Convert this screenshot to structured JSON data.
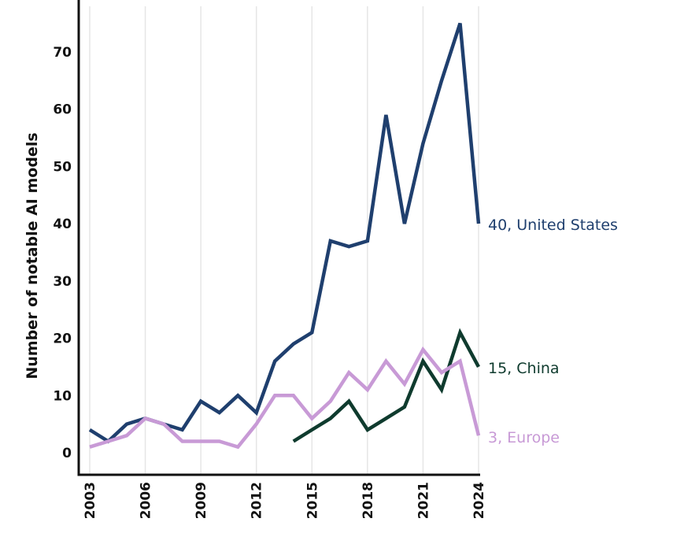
{
  "chart_data": {
    "type": "line",
    "ylabel": "Number of notable AI models",
    "xlabel": "",
    "ylim": [
      0,
      75
    ],
    "xlim": [
      2003,
      2024
    ],
    "y_ticks": [
      0,
      10,
      20,
      30,
      40,
      50,
      60,
      70
    ],
    "x_ticks": [
      2003,
      2006,
      2009,
      2012,
      2015,
      2018,
      2021,
      2024
    ],
    "grid": "vertical",
    "series": [
      {
        "name": "United States",
        "end_label": "40, United States",
        "color": "#1f3f6e",
        "x": [
          2003,
          2004,
          2005,
          2006,
          2007,
          2008,
          2009,
          2010,
          2011,
          2012,
          2013,
          2014,
          2015,
          2016,
          2017,
          2018,
          2019,
          2020,
          2021,
          2022,
          2023,
          2024
        ],
        "values": [
          4,
          2,
          5,
          6,
          5,
          4,
          9,
          7,
          10,
          7,
          16,
          19,
          21,
          37,
          36,
          37,
          59,
          40,
          54,
          65,
          75,
          40
        ]
      },
      {
        "name": "China",
        "end_label": "15, China",
        "color": "#0f3b2e",
        "x": [
          2014,
          2015,
          2016,
          2017,
          2018,
          2019,
          2020,
          2021,
          2022,
          2023,
          2024
        ],
        "values": [
          2,
          4,
          6,
          9,
          4,
          6,
          8,
          16,
          11,
          21,
          15
        ]
      },
      {
        "name": "Europe",
        "end_label": "3, Europe",
        "color": "#c89ad6",
        "x": [
          2003,
          2004,
          2005,
          2006,
          2007,
          2008,
          2009,
          2010,
          2011,
          2012,
          2013,
          2014,
          2015,
          2016,
          2017,
          2018,
          2019,
          2020,
          2021,
          2022,
          2023,
          2024
        ],
        "values": [
          1,
          2,
          3,
          6,
          5,
          2,
          2,
          2,
          1,
          5,
          10,
          10,
          6,
          9,
          14,
          11,
          16,
          12,
          18,
          14,
          16,
          3
        ]
      }
    ]
  }
}
